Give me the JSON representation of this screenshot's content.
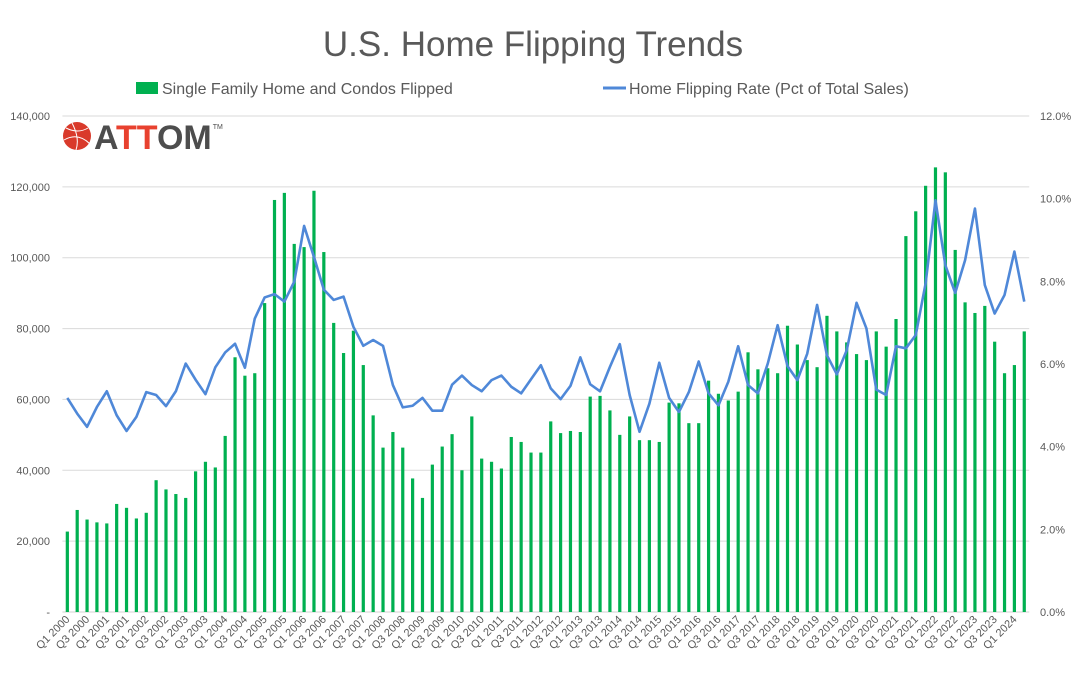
{
  "chart_data": {
    "type": "bar+line",
    "title": "U.S. Home Flipping Trends",
    "legend_placement": "top",
    "grid": true,
    "categories": [
      "Q1 2000",
      "Q2 2000",
      "Q3 2000",
      "Q4 2000",
      "Q1 2001",
      "Q2 2001",
      "Q3 2001",
      "Q4 2001",
      "Q1 2002",
      "Q2 2002",
      "Q3 2002",
      "Q4 2002",
      "Q1 2003",
      "Q2 2003",
      "Q3 2003",
      "Q4 2003",
      "Q1 2004",
      "Q2 2004",
      "Q3 2004",
      "Q4 2004",
      "Q1 2005",
      "Q2 2005",
      "Q3 2005",
      "Q4 2005",
      "Q1 2006",
      "Q2 2006",
      "Q3 2006",
      "Q4 2006",
      "Q1 2007",
      "Q2 2007",
      "Q3 2007",
      "Q4 2007",
      "Q1 2008",
      "Q2 2008",
      "Q3 2008",
      "Q4 2008",
      "Q1 2009",
      "Q2 2009",
      "Q3 2009",
      "Q4 2009",
      "Q1 2010",
      "Q2 2010",
      "Q3 2010",
      "Q4 2010",
      "Q1 2011",
      "Q2 2011",
      "Q3 2011",
      "Q4 2011",
      "Q1 2012",
      "Q2 2012",
      "Q3 2012",
      "Q4 2012",
      "Q1 2013",
      "Q2 2013",
      "Q3 2013",
      "Q4 2013",
      "Q1 2014",
      "Q2 2014",
      "Q3 2014",
      "Q4 2014",
      "Q1 2015",
      "Q2 2015",
      "Q3 2015",
      "Q4 2015",
      "Q1 2016",
      "Q2 2016",
      "Q3 2016",
      "Q4 2016",
      "Q1 2017",
      "Q2 2017",
      "Q3 2017",
      "Q4 2017",
      "Q1 2018",
      "Q2 2018",
      "Q3 2018",
      "Q4 2018",
      "Q1 2019",
      "Q2 2019",
      "Q3 2019",
      "Q4 2019",
      "Q1 2020",
      "Q2 2020",
      "Q3 2020",
      "Q4 2020",
      "Q1 2021",
      "Q2 2021",
      "Q3 2021",
      "Q4 2021",
      "Q1 2022",
      "Q2 2022",
      "Q3 2022",
      "Q4 2022",
      "Q1 2023",
      "Q2 2023",
      "Q3 2023",
      "Q4 2023",
      "Q1 2024",
      "Q2 2024"
    ],
    "tick_every": 2,
    "y_left": {
      "range": [
        0,
        140000
      ],
      "ticks": [
        "-",
        "20,000",
        "40,000",
        "60,000",
        "80,000",
        "100,000",
        "120,000",
        "140,000"
      ]
    },
    "y_right": {
      "range": [
        0,
        12
      ],
      "ticks": [
        "0.0%",
        "2.0%",
        "4.0%",
        "6.0%",
        "8.0%",
        "10.0%",
        "12.0%"
      ]
    },
    "series": [
      {
        "name": "Single Family Home and Condos Flipped",
        "type": "bar",
        "axis": "left",
        "color": "#00B050",
        "values": [
          22700,
          28800,
          26100,
          25300,
          25000,
          30500,
          29400,
          26400,
          28000,
          37200,
          34600,
          33300,
          32200,
          39700,
          42400,
          40800,
          49700,
          71900,
          66700,
          67400,
          87200,
          116300,
          118300,
          103900,
          103000,
          118900,
          101600,
          81600,
          73100,
          79400,
          69700,
          55500,
          46400,
          50800,
          46400,
          37700,
          32200,
          41600,
          46700,
          50200,
          40000,
          55200,
          43300,
          42400,
          40500,
          49400,
          48000,
          45000,
          45000,
          53800,
          50500,
          51100,
          50800,
          60800,
          61000,
          56900,
          50000,
          55200,
          48500,
          48500,
          48000,
          59100,
          58900,
          53300,
          53300,
          65300,
          61600,
          59700,
          62200,
          73300,
          68500,
          68800,
          67400,
          80800,
          75500,
          71100,
          69100,
          83600,
          79200,
          76100,
          72800,
          71100,
          79200,
          74900,
          82700,
          106100,
          113100,
          120300,
          125500,
          124100,
          102200,
          87400,
          84400,
          86400,
          76300,
          67400,
          69700,
          79200
        ]
      },
      {
        "name": "Home Flipping Rate (Pct of Total Sales)",
        "type": "line",
        "axis": "right",
        "color": "#4F88D8",
        "values": [
          5.18,
          4.8,
          4.48,
          4.96,
          5.34,
          4.76,
          4.38,
          4.72,
          5.32,
          5.25,
          4.98,
          5.34,
          6.01,
          5.62,
          5.27,
          5.92,
          6.28,
          6.49,
          5.91,
          7.1,
          7.61,
          7.69,
          7.51,
          7.99,
          9.34,
          8.59,
          7.8,
          7.55,
          7.63,
          6.9,
          6.44,
          6.58,
          6.44,
          5.49,
          4.95,
          4.99,
          5.18,
          4.87,
          4.87,
          5.5,
          5.72,
          5.49,
          5.34,
          5.61,
          5.72,
          5.45,
          5.29,
          5.63,
          5.97,
          5.41,
          5.15,
          5.47,
          6.16,
          5.51,
          5.34,
          5.93,
          6.48,
          5.25,
          4.36,
          5.04,
          6.03,
          5.18,
          4.84,
          5.32,
          6.06,
          5.29,
          5.0,
          5.57,
          6.43,
          5.49,
          5.29,
          6.01,
          6.94,
          5.95,
          5.61,
          6.25,
          7.43,
          6.21,
          5.75,
          6.33,
          7.48,
          6.86,
          5.38,
          5.25,
          6.43,
          6.38,
          6.7,
          7.95,
          9.96,
          8.39,
          7.72,
          8.51,
          9.76,
          7.91,
          7.22,
          7.67,
          8.72,
          7.51
        ]
      }
    ]
  },
  "logo": {
    "text": "ATTOM",
    "tm": "™",
    "colors": {
      "red": "#E8412F",
      "dark": "#4D4D4D"
    }
  }
}
